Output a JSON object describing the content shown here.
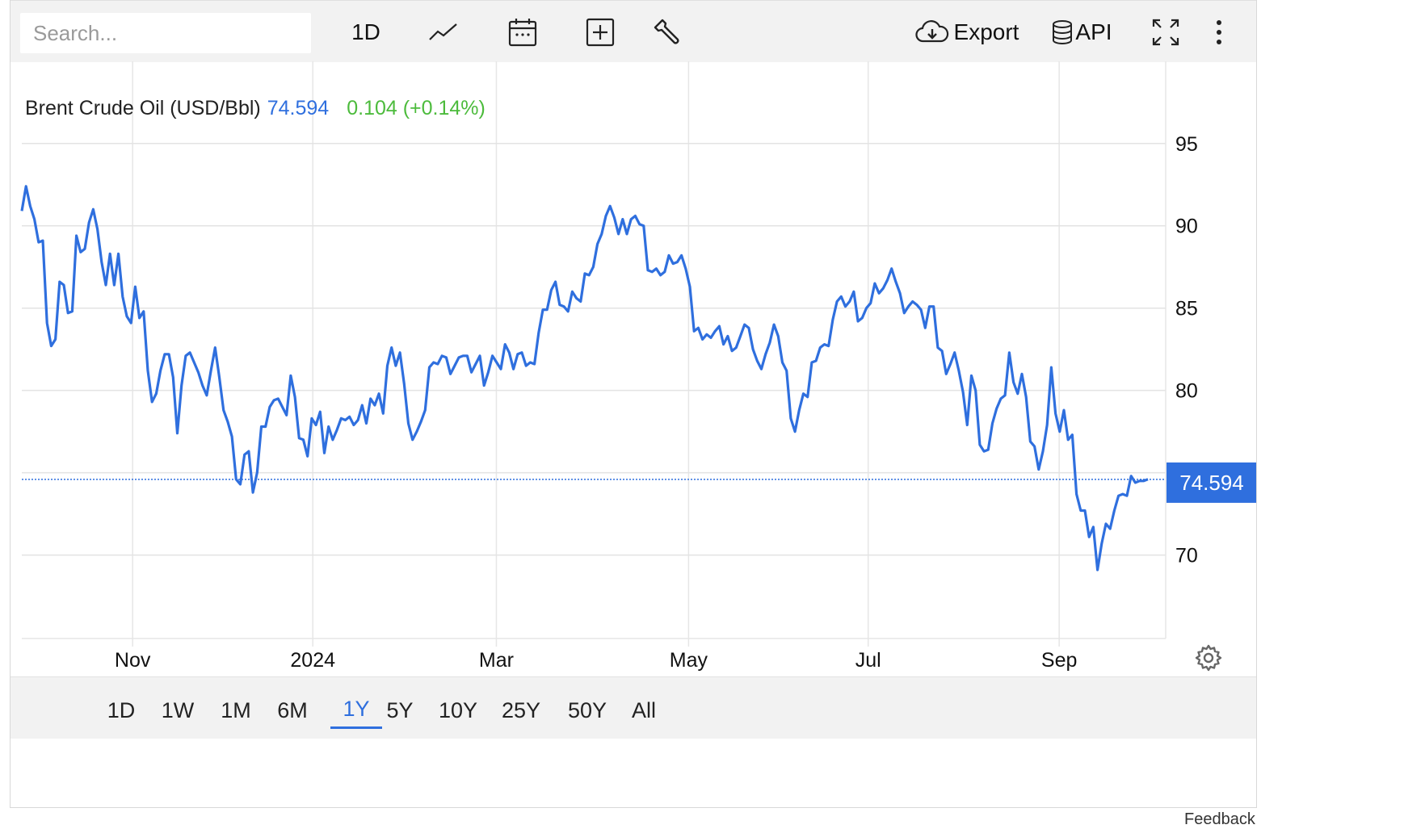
{
  "toolbar": {
    "search_placeholder": "Search...",
    "interval_label": "1D",
    "export_label": "Export",
    "api_label": "API",
    "icons": [
      "line-chart-icon",
      "calendar-icon",
      "plus-square-icon",
      "wrench-icon",
      "cloud-download-icon",
      "database-icon",
      "expand-icon",
      "more-vertical-icon"
    ]
  },
  "legend": {
    "name": "Brent Crude Oil (USD/Bbl)",
    "last": "74.594",
    "change": "0.104 (+0.14%)",
    "name_color": "#222222",
    "last_color": "#2f6fde",
    "change_color": "#4cbb3c"
  },
  "range_buttons": [
    "1D",
    "1W",
    "1M",
    "6M",
    "1Y",
    "5Y",
    "10Y",
    "25Y",
    "50Y",
    "All"
  ],
  "active_range": "1Y",
  "feedback_text": "Feedback",
  "chart_data": {
    "type": "line",
    "series": [
      {
        "values": [
          90.9,
          92.4,
          91.2,
          90.4,
          89.0,
          89.1,
          84.1,
          82.7,
          83.1,
          86.6,
          86.4,
          84.7,
          84.8,
          89.4,
          88.4,
          88.6,
          90.2,
          91.0,
          89.8,
          87.8,
          86.4,
          88.3,
          86.4,
          88.3,
          85.7,
          84.5,
          84.1,
          86.3,
          84.4,
          84.8,
          81.2,
          79.3,
          79.8,
          81.2,
          82.2,
          82.2,
          80.8,
          77.4,
          80.3,
          82.1,
          82.3,
          81.7,
          81.1,
          80.3,
          79.7,
          81.2,
          82.6,
          80.8,
          78.8,
          78.1,
          77.2,
          74.6,
          74.3,
          76.1,
          76.3,
          73.8,
          75.0,
          77.8,
          77.8,
          79.0,
          79.4,
          79.5,
          79.0,
          78.5,
          80.9,
          79.6,
          77.1,
          77.0,
          76.0,
          78.3,
          77.9,
          78.7,
          76.2,
          77.8,
          77.0,
          77.6,
          78.3,
          78.2,
          78.4,
          77.9,
          78.2,
          79.1,
          78.0,
          79.5,
          79.1,
          79.8,
          78.6,
          81.5,
          82.6,
          81.5,
          82.3,
          80.4,
          78.0,
          77.0,
          77.5,
          78.1,
          78.8,
          81.4,
          81.7,
          81.6,
          82.1,
          82.0,
          81.0,
          81.5,
          82.0,
          82.1,
          82.1,
          81.1,
          81.6,
          82.1,
          80.3,
          81.1,
          82.1,
          81.7,
          81.3,
          82.8,
          82.3,
          81.3,
          82.2,
          82.3,
          81.5,
          81.7,
          81.6,
          83.5,
          84.9,
          84.9,
          86.1,
          86.6,
          85.2,
          85.1,
          84.8,
          86.0,
          85.6,
          85.4,
          87.1,
          87.0,
          87.5,
          88.9,
          89.5,
          90.6,
          91.2,
          90.5,
          89.5,
          90.4,
          89.5,
          90.4,
          90.6,
          90.1,
          90.0,
          87.3,
          87.2,
          87.4,
          87.0,
          87.2,
          88.2,
          87.7,
          87.8,
          88.2,
          87.4,
          86.3,
          83.6,
          83.8,
          83.1,
          83.4,
          83.2,
          83.6,
          83.9,
          82.8,
          83.3,
          82.4,
          82.6,
          83.3,
          84.0,
          83.8,
          82.5,
          81.8,
          81.3,
          82.2,
          82.9,
          84.0,
          83.3,
          81.7,
          81.2,
          78.3,
          77.5,
          78.8,
          79.8,
          79.6,
          81.7,
          81.8,
          82.6,
          82.8,
          82.7,
          84.3,
          85.4,
          85.7,
          85.1,
          85.4,
          86.0,
          84.2,
          84.4,
          85.0,
          85.3,
          86.5,
          85.9,
          86.2,
          86.7,
          87.4,
          86.6,
          85.9,
          84.7,
          85.1,
          85.4,
          85.2,
          84.9,
          83.8,
          85.1,
          85.1,
          82.6,
          82.4,
          81.0,
          81.6,
          82.3,
          81.2,
          79.9,
          77.9,
          80.9,
          80.0,
          76.7,
          76.3,
          76.4,
          78.0,
          78.9,
          79.5,
          79.7,
          82.3,
          80.5,
          79.8,
          81.0,
          79.6,
          76.9,
          76.6,
          75.2,
          76.3,
          77.9,
          81.4,
          78.6,
          77.5,
          78.8,
          77.0,
          77.3,
          73.7,
          72.7,
          72.7,
          71.1,
          71.7,
          69.1,
          70.7,
          71.9,
          71.6,
          72.7,
          73.6,
          73.7,
          73.6,
          74.8,
          74.4,
          74.5,
          74.5,
          74.6
        ]
      }
    ],
    "x_ticks": [
      "Nov",
      "2024",
      "Mar",
      "May",
      "Jul",
      "Sep"
    ],
    "y_ticks": [
      95,
      90,
      85,
      80,
      75,
      70
    ],
    "y_tick_labels": [
      "95",
      "90",
      "85",
      "80",
      "",
      "70"
    ],
    "ylim": [
      64.93,
      99.99
    ],
    "last_value_label": "74.594",
    "line_color": "#2f6fde",
    "grid": true,
    "y_axis_side": "right"
  }
}
